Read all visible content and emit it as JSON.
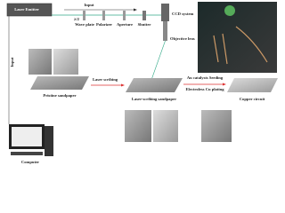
{
  "labels": {
    "laser_emitter": "Laser Emitter",
    "input_top": "Input",
    "half_wave": "λ/2",
    "wave_plate": "Wave plate",
    "polarizer": "Polarizer",
    "aperture": "Aperture",
    "shutter": "Shutter",
    "ccd": "CCD system",
    "objective": "Objective lens",
    "input_left": "Input",
    "laser_scribing": "Laser scribing",
    "au_seeding": "Au catalysts Seeding",
    "cu_plating": "Electroless Cu plating",
    "pristine": "Pristine sandpaper",
    "scribed": "Laser-scribing sandpaper",
    "copper": "Copper circuit",
    "computer": "Computer"
  }
}
